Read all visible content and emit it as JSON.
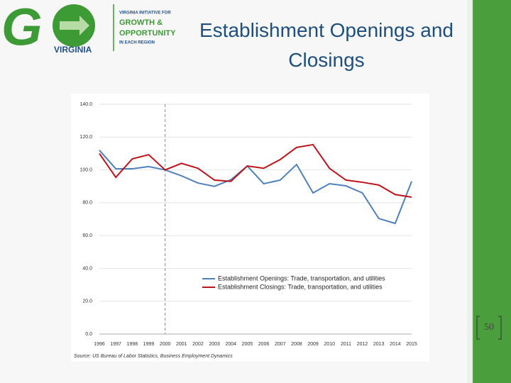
{
  "header": {
    "logo_letter": "G",
    "logo_state": "VIRGINIA",
    "tagline_top": "VIRGINIA INITIATIVE FOR",
    "tagline_growth": "GROWTH &",
    "tagline_opportunity": "OPPORTUNITY",
    "tagline_bottom": "IN EACH REGION",
    "title": "Establishment Openings and Closings"
  },
  "chart_data": {
    "type": "line",
    "categories": [
      "1996",
      "1997",
      "1998",
      "1999",
      "2000",
      "2001",
      "2002",
      "2003",
      "2004",
      "2005",
      "2006",
      "2007",
      "2008",
      "2009",
      "2010",
      "2011",
      "2012",
      "2013",
      "2014",
      "2015"
    ],
    "series": [
      {
        "name": "Establishment Openings: Trade, transportation, and utilities",
        "color": "#4f81bd",
        "values": [
          112,
          100.7,
          100.7,
          102,
          100,
          96.4,
          92,
          90,
          94,
          102.4,
          91.6,
          93.8,
          103.3,
          86,
          91.6,
          90.3,
          86,
          70.4,
          67.4,
          93
        ]
      },
      {
        "name": "Establishment Closings: Trade, transportation, and utilities",
        "color": "#c0141c",
        "values": [
          110,
          95.5,
          106.7,
          109.3,
          100,
          104,
          101,
          93.8,
          93,
          102.4,
          101,
          106.3,
          113.7,
          115.4,
          101,
          93.8,
          92.5,
          90.8,
          85,
          83.4
        ]
      }
    ],
    "ylim": [
      0,
      140
    ],
    "yticks": [
      {
        "value": 0,
        "label": "0.0"
      },
      {
        "value": 20,
        "label": "20.0"
      },
      {
        "value": 40,
        "label": "40.0"
      },
      {
        "value": 60,
        "label": "60.0"
      },
      {
        "value": 80,
        "label": "80.0"
      },
      {
        "value": 100,
        "label": "100.0"
      },
      {
        "value": 120,
        "label": "120.0"
      },
      {
        "value": 140,
        "label": "140.0"
      }
    ],
    "grid": true,
    "vline": "2000",
    "legend": "lower center",
    "source": "Source: US Bureau of Labor Statistics, Business Employment Dynamics"
  },
  "page_number": "50"
}
